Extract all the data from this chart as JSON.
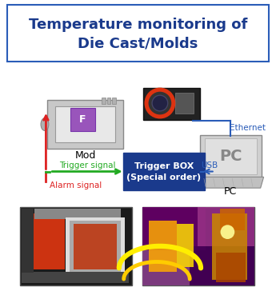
{
  "title_line1": "Temperature monitoring of",
  "title_line2": "Die Cast/Molds",
  "title_color": "#1a3a8c",
  "title_fontsize": 13,
  "title_box_color": "#2a5cb8",
  "bg_color": "#ffffff",
  "mod_label": "Mod",
  "pc_label": "PC",
  "trigger_box_label": "Trigger BOX\n(Special order)",
  "trigger_box_color": "#1a3a8c",
  "trigger_box_text_color": "#ffffff",
  "trigger_signal_label": "Trigger signal",
  "trigger_signal_color": "#22aa22",
  "alarm_signal_label": "Alarm signal",
  "alarm_signal_color": "#dd2222",
  "ethernet_label": "Ethernet",
  "ethernet_color": "#2a5cb8",
  "usb_label": "USB",
  "usb_color": "#2a5cb8",
  "label_color": "#000000",
  "label_fontsize": 8
}
